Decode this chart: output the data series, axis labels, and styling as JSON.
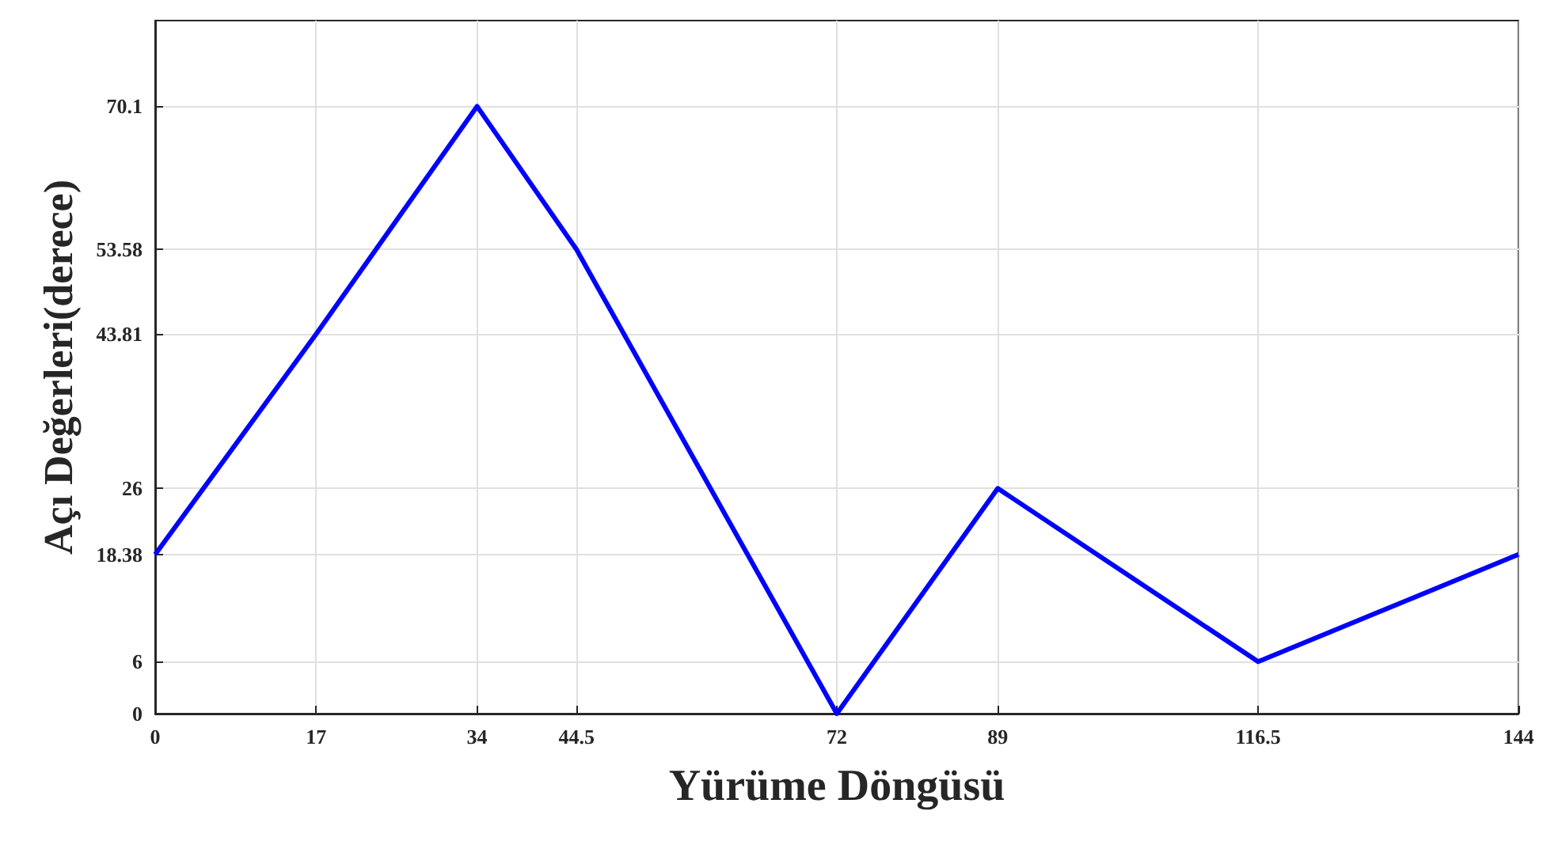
{
  "chart_data": {
    "type": "line",
    "xlabel": "Yürüme Döngüsü",
    "ylabel": "Açı Değerleri(derece)",
    "x": [
      0,
      17,
      34,
      44.5,
      72,
      89,
      116.5,
      144
    ],
    "series": [
      {
        "color": "#0000ff",
        "values": [
          18.38,
          43.81,
          70.1,
          53.58,
          0,
          26,
          6,
          18.38
        ]
      }
    ],
    "xlim": [
      0,
      144
    ],
    "xticks": [
      0,
      17,
      34,
      44.5,
      72,
      89,
      116.5,
      144
    ],
    "ylim": [
      0,
      80
    ],
    "yticks": [
      0,
      6,
      18.38,
      26,
      43.81,
      53.58,
      70.1
    ],
    "grid": true,
    "marker": "none",
    "line_style": "solid"
  }
}
